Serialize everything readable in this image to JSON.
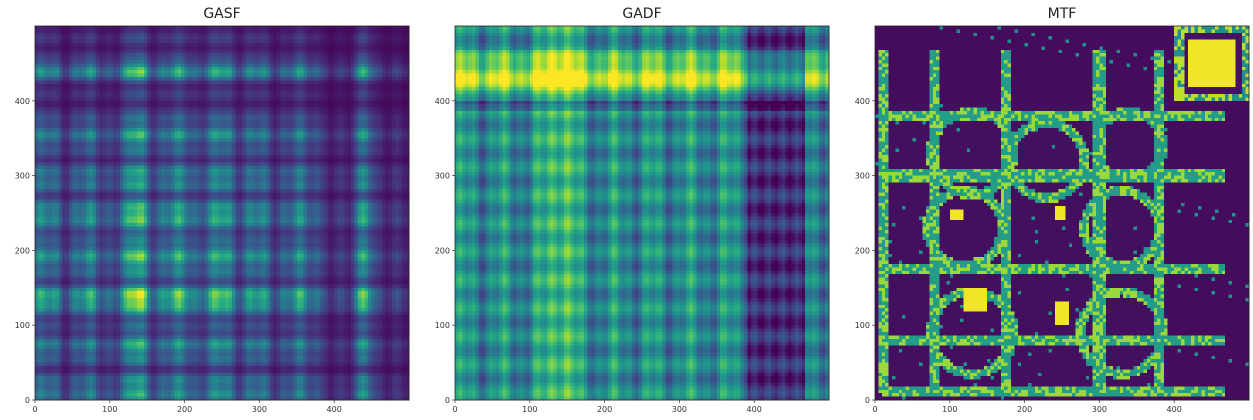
{
  "chart_data": [
    {
      "type": "heatmap",
      "title": "GASF",
      "colormap": "viridis",
      "x_range": [
        0,
        500
      ],
      "y_range": [
        0,
        500
      ],
      "xticks": [
        "0",
        "100",
        "200",
        "300",
        "400"
      ],
      "yticks": [
        "0",
        "100",
        "200",
        "300",
        "400"
      ],
      "band_centers": [
        135,
        195,
        255,
        440
      ],
      "cross_hotspot": [
        140,
        140
      ],
      "corner_hotspot": [
        440,
        440
      ],
      "divider": 390
    },
    {
      "type": "heatmap",
      "title": "GADF",
      "colormap": "viridis",
      "x_range": [
        0,
        500
      ],
      "y_range": [
        0,
        500
      ],
      "xticks": [
        "0",
        "100",
        "200",
        "300",
        "400"
      ],
      "yticks": [
        "0",
        "100",
        "200",
        "300",
        "400"
      ],
      "bright_row_band": [
        400,
        470
      ],
      "bright_col_band": [
        120,
        160
      ],
      "dark_col_band": [
        400,
        470
      ],
      "divider": 390
    },
    {
      "type": "heatmap",
      "title": "MTF",
      "colormap": "viridis",
      "x_range": [
        0,
        500
      ],
      "y_range": [
        0,
        500
      ],
      "xticks": [
        "0",
        "100",
        "200",
        "300",
        "400"
      ],
      "yticks": [
        "0",
        "100",
        "200",
        "300",
        "400"
      ],
      "block_edges": [
        0,
        20,
        85,
        175,
        290,
        380,
        500
      ],
      "yellow_blocks": [
        [
          420,
          480,
          420,
          480
        ],
        [
          120,
          150,
          120,
          150
        ],
        [
          240,
          260,
          100,
          130
        ]
      ]
    }
  ]
}
